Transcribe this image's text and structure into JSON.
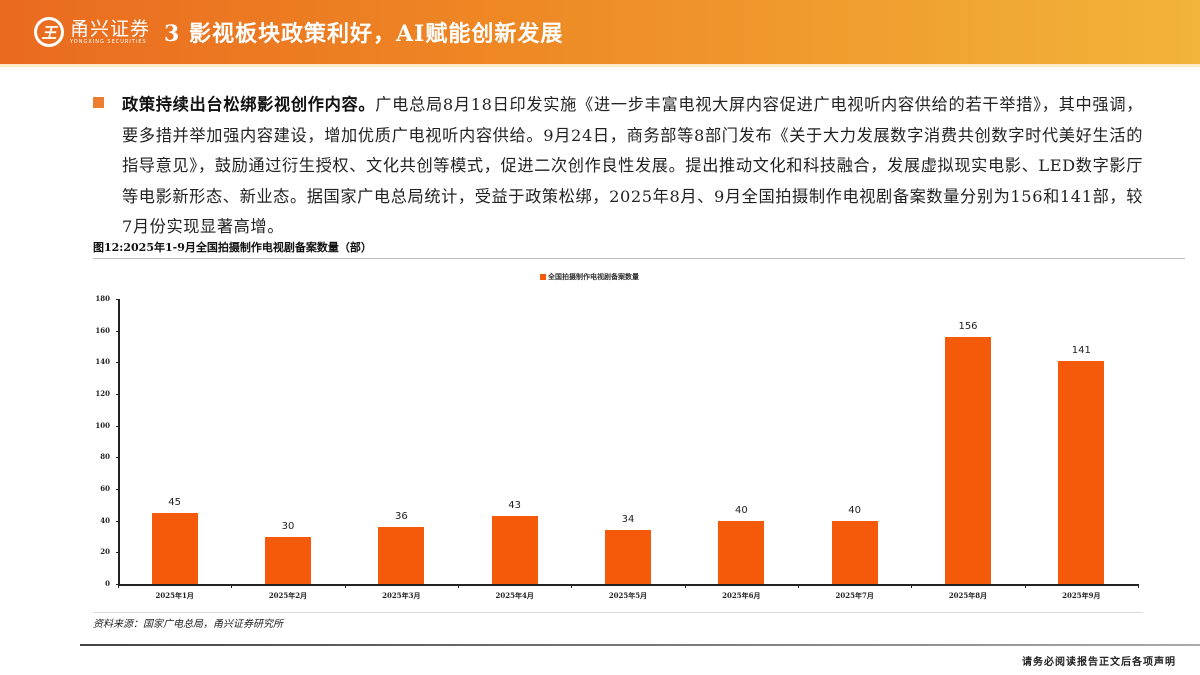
{
  "header": {
    "logo_mark": "王",
    "logo_cn": "甬兴证券",
    "logo_en": "YONGXING SECURITIES",
    "title": "3 影视板块政策利好，AI赋能创新发展",
    "gradient_colors": [
      "#ea6a1f",
      "#f2b43a"
    ]
  },
  "body": {
    "bullet_bold": "政策持续出台松绑影视创作内容。",
    "bullet_text": "广电总局8月18日印发实施《进一步丰富电视大屏内容促进广电视听内容供给的若干举措》，其中强调，要多措并举加强内容建设，增加优质广电视听内容供给。9月24日，商务部等8部门发布《关于大力发展数字消费共创数字时代美好生活的指导意见》，鼓励通过衍生授权、文化共创等模式，促进二次创作良性发展。提出推动文化和科技融合，发展虚拟现实电影、LED数字影厅等电影新形态、新业态。据国家广电总局统计，受益于政策松绑，2025年8月、9月全国拍摄制作电视剧备案数量分别为156和141部，较7月份实现显著高增。"
  },
  "figure": {
    "title": "图12:2025年1-9月全国拍摄制作电视剧备案数量（部）",
    "source": "资料来源：国家广电总局，甬兴证券研究所"
  },
  "chart_data": {
    "type": "bar",
    "title": "图12:2025年1-9月全国拍摄制作电视剧备案数量（部）",
    "categories": [
      "2025年1月",
      "2025年2月",
      "2025年3月",
      "2025年4月",
      "2025年5月",
      "2025年6月",
      "2025年7月",
      "2025年8月",
      "2025年9月"
    ],
    "series": [
      {
        "name": "全国拍摄制作电视剧备案数量",
        "values": [
          45,
          30,
          36,
          43,
          34,
          40,
          40,
          156,
          141
        ],
        "color": "#f55a0a"
      }
    ],
    "y_ticks": [
      0,
      20,
      40,
      60,
      80,
      100,
      120,
      140,
      160,
      180
    ],
    "ylim": [
      0,
      180
    ],
    "xlabel": "",
    "ylabel": "",
    "legend_position": "top",
    "grid": false,
    "data_labels": true
  },
  "footer": {
    "disclaimer": "请务必阅读报告正文后各项声明"
  }
}
